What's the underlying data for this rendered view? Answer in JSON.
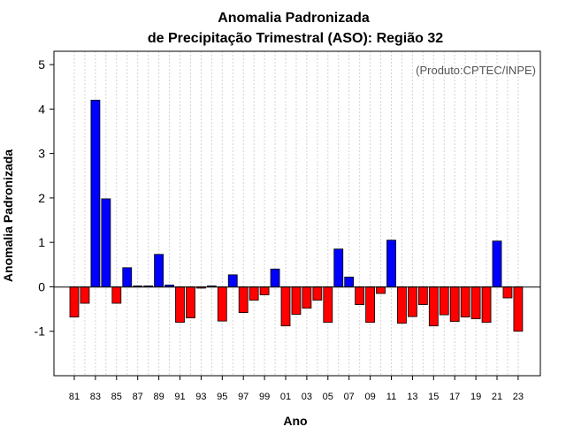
{
  "chart_data": {
    "type": "bar",
    "title": [
      "Anomalia Padronizada",
      "de Precipitação Trimestral (ASO): Região 32"
    ],
    "annotation": "(Produto:CPTEC/INPE)",
    "xlabel": "Ano",
    "ylabel": "Anomalia Padronizada",
    "ylim": [
      -2.0,
      5.3
    ],
    "yticks": [
      -1,
      0,
      1,
      2,
      3,
      4,
      5
    ],
    "years": [
      1981,
      1982,
      1983,
      1984,
      1985,
      1986,
      1987,
      1988,
      1989,
      1990,
      1991,
      1992,
      1993,
      1994,
      1995,
      1996,
      1997,
      1998,
      1999,
      2000,
      2001,
      2002,
      2003,
      2004,
      2005,
      2006,
      2007,
      2008,
      2009,
      2010,
      2011,
      2012,
      2013,
      2014,
      2015,
      2016,
      2017,
      2018,
      2019,
      2020,
      2021,
      2022,
      2023
    ],
    "xtick_labels": [
      "81",
      "83",
      "85",
      "87",
      "89",
      "91",
      "93",
      "95",
      "97",
      "99",
      "01",
      "03",
      "05",
      "07",
      "09",
      "11",
      "13",
      "15",
      "17",
      "19",
      "21",
      "23"
    ],
    "values": [
      -0.68,
      -0.37,
      4.2,
      1.98,
      -0.37,
      0.43,
      0.02,
      0.02,
      0.73,
      0.04,
      -0.8,
      -0.7,
      -0.03,
      0.02,
      -0.77,
      0.27,
      -0.58,
      -0.3,
      -0.18,
      0.4,
      -0.88,
      -0.62,
      -0.48,
      -0.3,
      -0.8,
      0.85,
      0.22,
      -0.4,
      -0.8,
      -0.15,
      1.05,
      -0.82,
      -0.67,
      -0.4,
      -0.88,
      -0.63,
      -0.78,
      -0.68,
      -0.72,
      -0.8,
      1.03,
      -0.25,
      -1.0
    ],
    "colors": {
      "positive": "#0000ff",
      "negative": "#ff0000",
      "grid": "#d3d3d3"
    }
  }
}
